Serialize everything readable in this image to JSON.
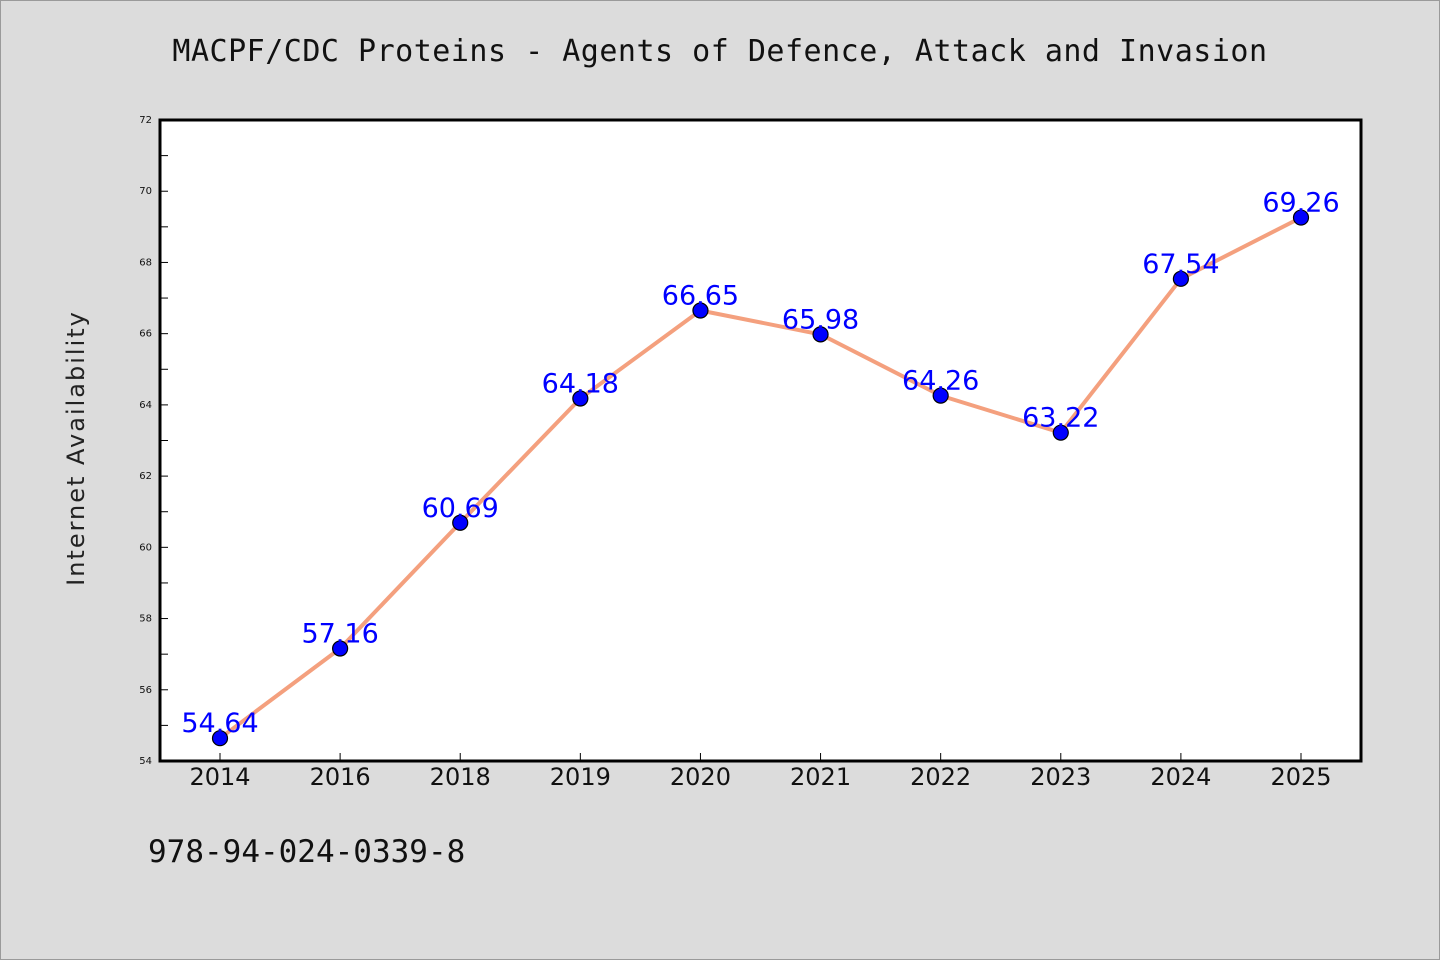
{
  "title": "MACPF/CDC Proteins - Agents of Defence, Attack and Invasion",
  "footer_text": "978-94-024-0339-8",
  "colors": {
    "background": "#dcdcdc",
    "plot_background": "#ffffff",
    "line": "#f4a07e",
    "marker": "#0000ff",
    "data_label": "#0000ff"
  },
  "chart_data": {
    "type": "line",
    "title": "MACPF/CDC Proteins - Agents of Defence, Attack and Invasion",
    "xlabel": "",
    "ylabel": "Internet Availability",
    "categories": [
      "2014",
      "2016",
      "2018",
      "2019",
      "2020",
      "2021",
      "2022",
      "2023",
      "2024",
      "2025"
    ],
    "values": [
      54.64,
      57.16,
      60.69,
      64.18,
      66.65,
      65.98,
      64.26,
      63.22,
      67.54,
      69.26
    ],
    "data_labels": [
      "54.64",
      "57.16",
      "60.69",
      "64.18",
      "66.65",
      "65.98",
      "64.26",
      "63.22",
      "67.54",
      "69.26"
    ],
    "ylim": [
      54,
      72
    ],
    "yticks": [
      "54",
      "56",
      "58",
      "60",
      "62",
      "64",
      "66",
      "68",
      "70",
      "72"
    ],
    "y_minor_step": 1,
    "grid": false,
    "legend": "none"
  }
}
